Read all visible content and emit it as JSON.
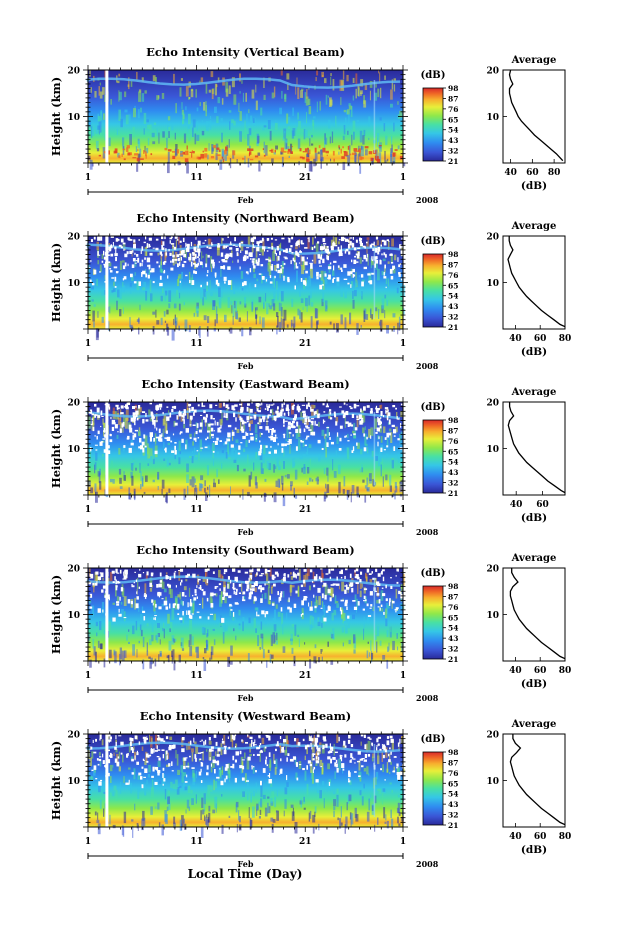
{
  "figure": {
    "xlabel": "Local Time (Day)",
    "x_ticklabels": [
      "1",
      "11",
      "21",
      "1"
    ],
    "month_label": "Feb",
    "year_label": "2008",
    "ylabel": "Height (km)",
    "y_ticklabels": [
      "10",
      "20"
    ],
    "colorbar_unit": "(dB)",
    "colorbar_ticklabels": [
      "21",
      "32",
      "43",
      "54",
      "65",
      "76",
      "87",
      "98"
    ],
    "profile_title": "Average",
    "profile_xlabel": "(dB)"
  },
  "chart_data": [
    {
      "type": "heatmap",
      "title": "Echo Intensity (Vertical Beam)",
      "ylim": [
        0,
        20
      ],
      "colorbar_range": [
        21,
        98
      ],
      "profile": {
        "type": "line",
        "xlim": [
          33,
          90
        ],
        "x_ticklabels": [
          "40",
          "60",
          "80"
        ],
        "heights": [
          0.5,
          1,
          2,
          3,
          4,
          5,
          6,
          7,
          8,
          9,
          10,
          11,
          12,
          13,
          14,
          15,
          16,
          17,
          18,
          19,
          20
        ],
        "values": [
          88,
          86,
          82,
          77,
          72,
          67,
          62,
          58,
          54,
          50,
          47,
          45,
          43,
          41,
          40,
          39,
          39,
          42,
          40,
          39,
          40
        ]
      }
    },
    {
      "type": "heatmap",
      "title": "Echo Intensity (Northward Beam)",
      "ylim": [
        0,
        20
      ],
      "colorbar_range": [
        21,
        98
      ],
      "profile": {
        "type": "line",
        "xlim": [
          30,
          80
        ],
        "x_ticklabels": [
          "40",
          "60",
          "80"
        ],
        "heights": [
          0.5,
          1,
          2,
          3,
          4,
          5,
          6,
          7,
          8,
          9,
          10,
          11,
          12,
          13,
          14,
          15,
          16,
          17,
          18,
          19,
          20
        ],
        "values": [
          80,
          76,
          71,
          66,
          61,
          57,
          53,
          49,
          46,
          43,
          41,
          39,
          37,
          36,
          35,
          34,
          36,
          38,
          36,
          35,
          35
        ]
      }
    },
    {
      "type": "heatmap",
      "title": "Echo Intensity (Eastward Beam)",
      "ylim": [
        0,
        20
      ],
      "colorbar_range": [
        21,
        98
      ],
      "profile": {
        "type": "line",
        "xlim": [
          30,
          77
        ],
        "x_ticklabels": [
          "40",
          "60"
        ],
        "heights": [
          0.5,
          1,
          2,
          3,
          4,
          5,
          6,
          7,
          8,
          9,
          10,
          11,
          12,
          13,
          14,
          15,
          16,
          17,
          18,
          19,
          20
        ],
        "values": [
          77,
          74,
          69,
          64,
          60,
          56,
          52,
          48,
          45,
          42,
          40,
          38,
          37,
          36,
          35,
          34,
          35,
          38,
          36,
          35,
          35
        ]
      }
    },
    {
      "type": "heatmap",
      "title": "Echo Intensity (Southward Beam)",
      "ylim": [
        0,
        20
      ],
      "colorbar_range": [
        21,
        98
      ],
      "profile": {
        "type": "line",
        "xlim": [
          30,
          80
        ],
        "x_ticklabels": [
          "40",
          "60",
          "80"
        ],
        "heights": [
          0.5,
          1,
          2,
          3,
          4,
          5,
          6,
          7,
          8,
          9,
          10,
          11,
          12,
          13,
          14,
          15,
          16,
          17,
          18,
          19,
          20
        ],
        "values": [
          80,
          76,
          71,
          66,
          61,
          57,
          53,
          49,
          46,
          43,
          41,
          39,
          38,
          37,
          36,
          36,
          38,
          42,
          39,
          37,
          37
        ]
      }
    },
    {
      "type": "heatmap",
      "title": "Echo Intensity (Westward Beam)",
      "ylim": [
        0,
        20
      ],
      "colorbar_range": [
        21,
        98
      ],
      "profile": {
        "type": "line",
        "xlim": [
          30,
          80
        ],
        "x_ticklabels": [
          "40",
          "60",
          "80"
        ],
        "heights": [
          0.5,
          1,
          2,
          3,
          4,
          5,
          6,
          7,
          8,
          9,
          10,
          11,
          12,
          13,
          14,
          15,
          16,
          17,
          18,
          19,
          20
        ],
        "values": [
          80,
          76,
          71,
          66,
          61,
          57,
          53,
          49,
          46,
          43,
          41,
          39,
          38,
          37,
          36,
          37,
          41,
          44,
          40,
          38,
          38
        ]
      }
    }
  ],
  "colormap": [
    "#2a2a9a",
    "#3a56d6",
    "#2f8cf0",
    "#35c7e6",
    "#48e0a4",
    "#8fe84a",
    "#e8ef3a",
    "#f7b02e",
    "#f06a26",
    "#d92a2a"
  ]
}
